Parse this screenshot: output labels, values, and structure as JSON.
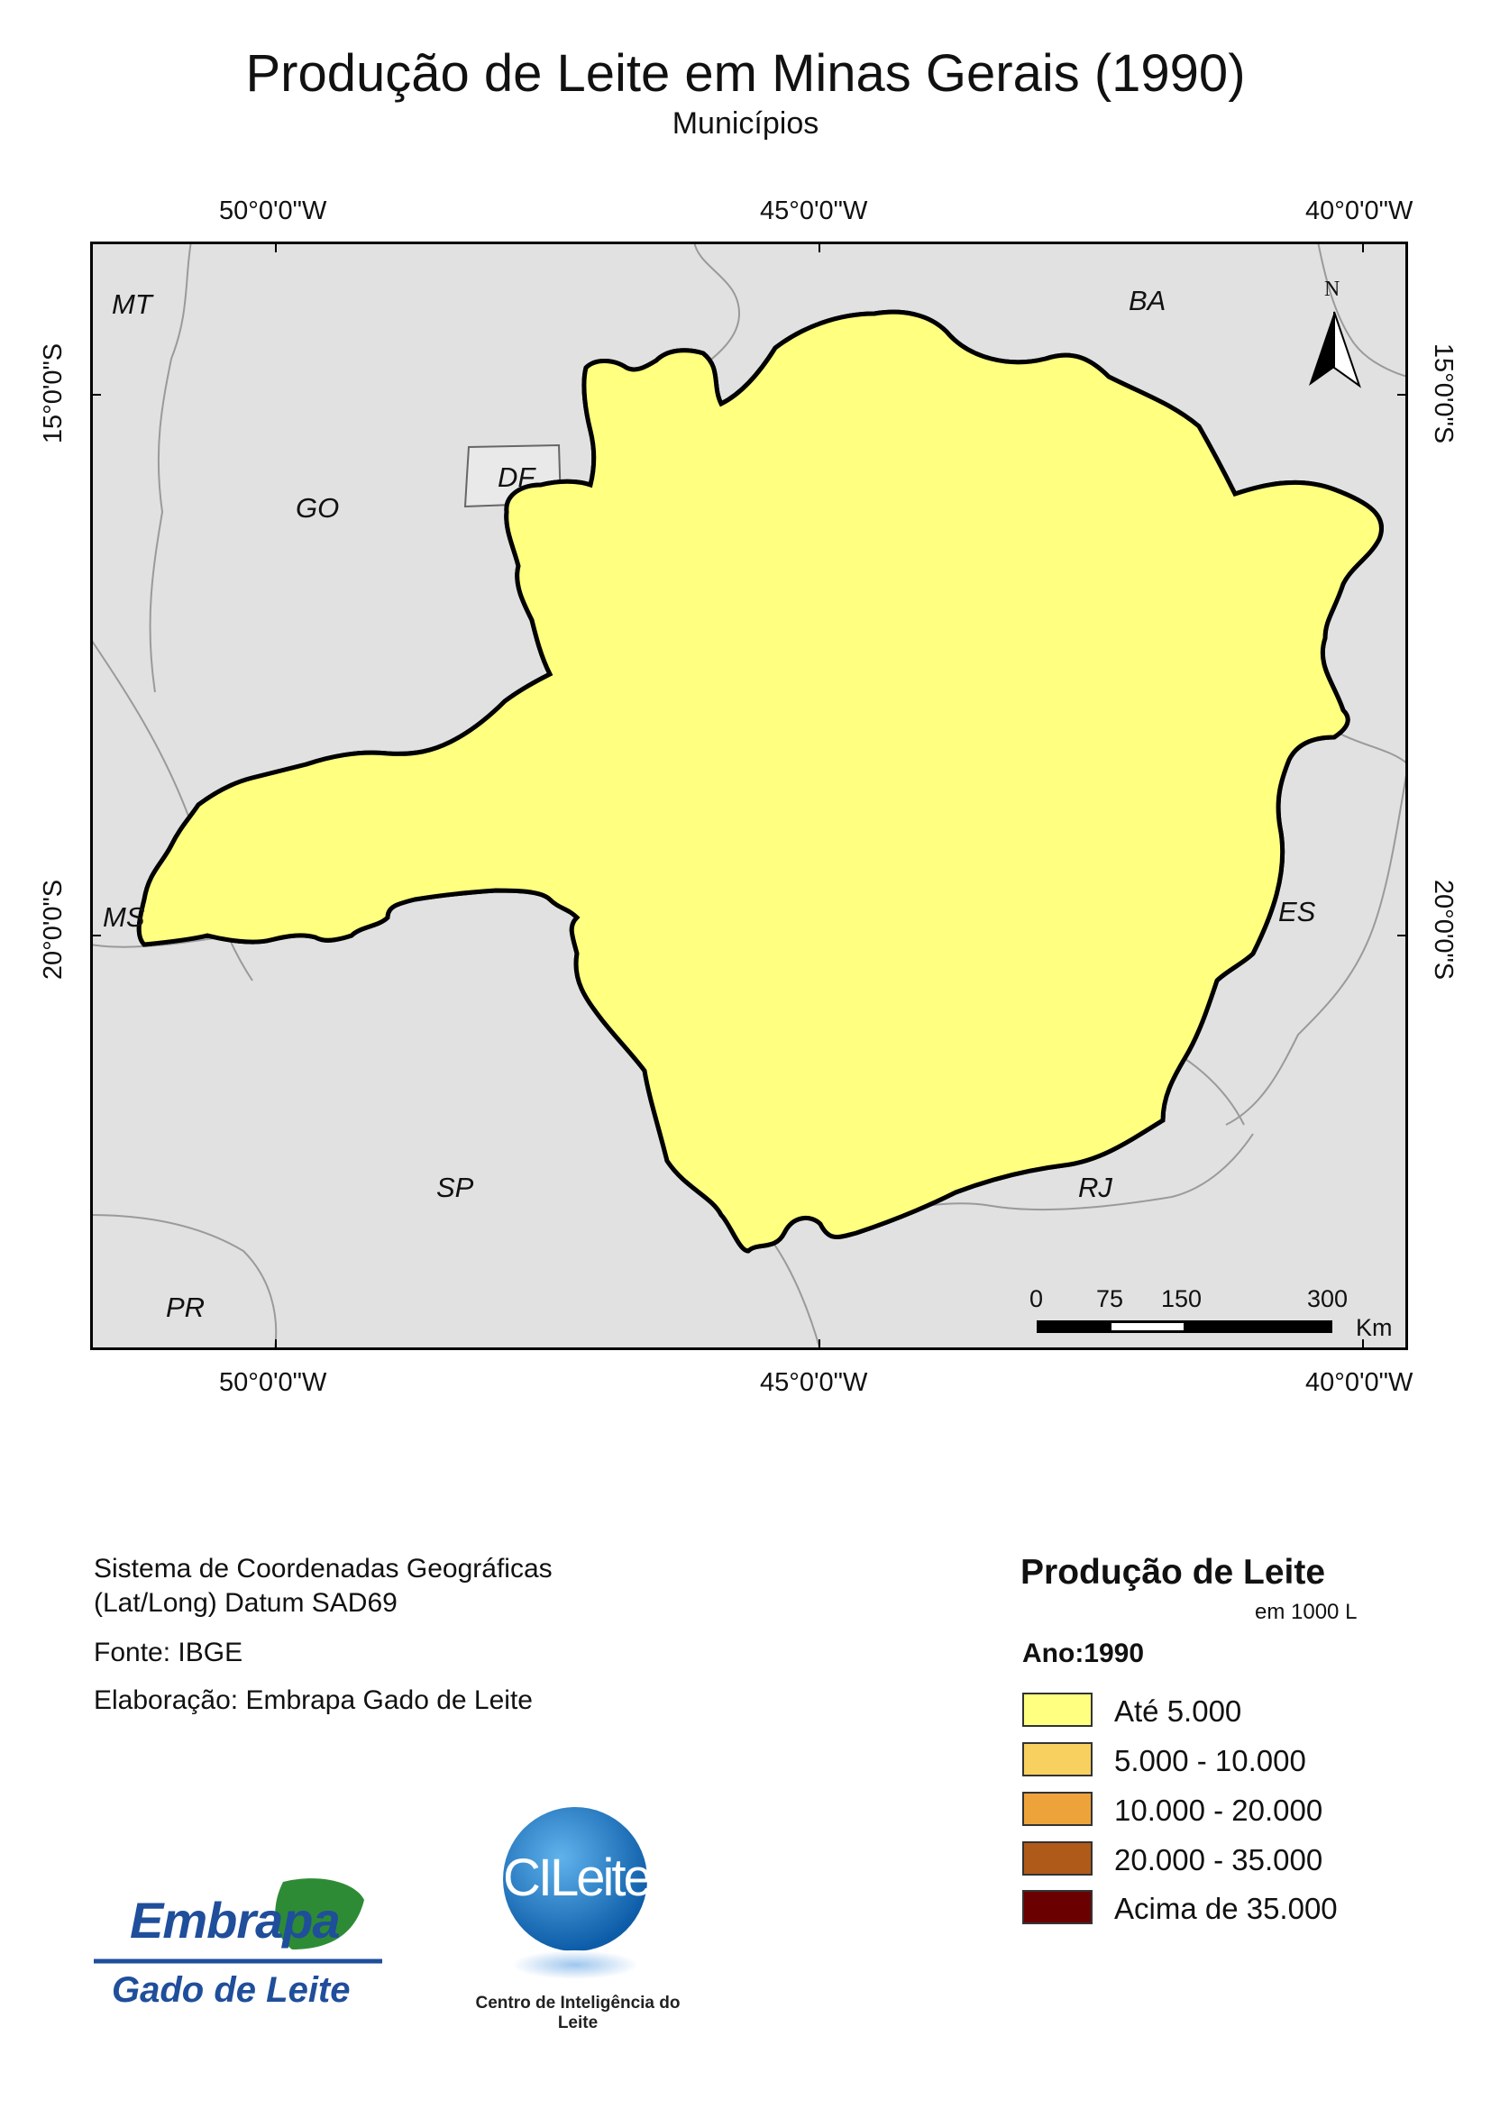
{
  "title": "Produção de Leite em Minas Gerais (1990)",
  "subtitle": "Municípios",
  "graticule": {
    "longitudes": [
      "50°0'0\"W",
      "45°0'0\"W",
      "40°0'0\"W"
    ],
    "latitudes": [
      "15°0'0\"S",
      "20°0'0\"S"
    ]
  },
  "state_labels": [
    "MT",
    "BA",
    "GO",
    "DF",
    "MS",
    "ES",
    "SP",
    "RJ",
    "PR"
  ],
  "north_arrow": {
    "label": "N",
    "icon": "north-arrow-icon"
  },
  "scale_bar": {
    "ticks": [
      "0",
      "75",
      "150",
      "300"
    ],
    "unit": "Km"
  },
  "info": {
    "line1": "Sistema de Coordenadas Geográficas",
    "line2": "(Lat/Long) Datum SAD69",
    "source": "Fonte: IBGE",
    "author": "Elaboração: Embrapa Gado de Leite"
  },
  "legend": {
    "title": "Produção de Leite",
    "unit": "em 1000 L",
    "year_label": "Ano:1990",
    "classes": [
      {
        "label": "Até 5.000",
        "color": "#ffff80"
      },
      {
        "label": "5.000 - 10.000",
        "color": "#f8d060"
      },
      {
        "label": "10.000 - 20.000",
        "color": "#eea33a"
      },
      {
        "label": "20.000 - 35.000",
        "color": "#b05a1a"
      },
      {
        "label": "Acima de 35.000",
        "color": "#6b0000"
      }
    ]
  },
  "logos": {
    "embrapa_word": "Embrapa",
    "embrapa_sub": "Gado de Leite",
    "cileite_word": "CILeite",
    "cileite_sub": "Centro de Inteligência do Leite"
  },
  "colors": {
    "background_states": "#e1e1e1",
    "state_borders": "#9a9a9a",
    "mg_border": "#000000"
  }
}
